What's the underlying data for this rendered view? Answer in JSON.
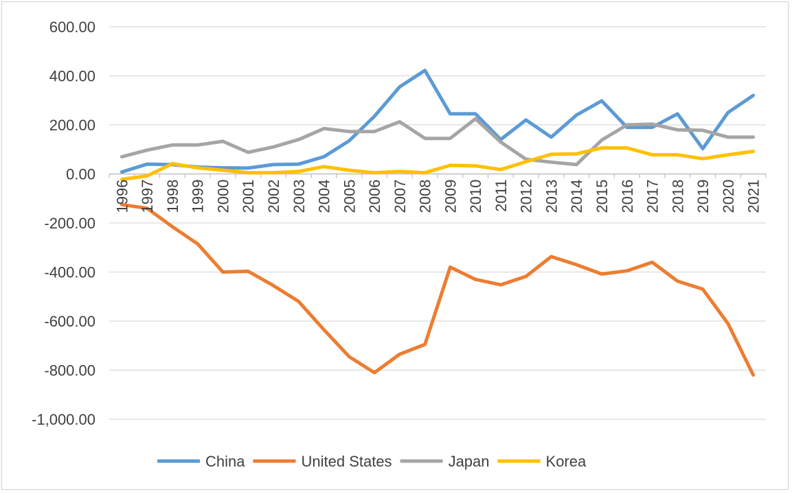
{
  "chart_data": {
    "type": "line",
    "title": "",
    "xlabel": "",
    "ylabel": "",
    "ylim": [
      -1000,
      600
    ],
    "y_ticks": [
      600,
      400,
      200,
      0,
      -200,
      -400,
      -600,
      -800,
      -1000
    ],
    "y_tick_labels": [
      "600.00",
      "400.00",
      "200.00",
      "0.00",
      "-200.00",
      "-400.00",
      "-600.00",
      "-800.00",
      "-1,000.00"
    ],
    "grid": true,
    "legend_position": "bottom",
    "categories": [
      "1996",
      "1997",
      "1998",
      "1999",
      "2000",
      "2001",
      "2002",
      "2003",
      "2004",
      "2005",
      "2006",
      "2007",
      "2008",
      "2009",
      "2010",
      "2011",
      "2012",
      "2013",
      "2014",
      "2015",
      "2016",
      "2017",
      "2018",
      "2019",
      "2020",
      "2021"
    ],
    "series": [
      {
        "name": "China",
        "color": "#5B9BD5",
        "values": [
          8,
          40,
          38,
          28,
          25,
          24,
          38,
          40,
          70,
          135,
          235,
          355,
          422,
          245,
          245,
          140,
          220,
          150,
          240,
          298,
          190,
          190,
          245,
          103,
          250,
          320
        ]
      },
      {
        "name": "United States",
        "color": "#ED7D31",
        "values": [
          -125,
          -140,
          -215,
          -285,
          -400,
          -397,
          -455,
          -520,
          -635,
          -745,
          -810,
          -735,
          -695,
          -380,
          -430,
          -452,
          -418,
          -337,
          -370,
          -408,
          -395,
          -360,
          -437,
          -470,
          -610,
          -820
        ]
      },
      {
        "name": "Japan",
        "color": "#A5A5A5",
        "values": [
          70,
          97,
          118,
          118,
          133,
          88,
          110,
          140,
          185,
          173,
          173,
          213,
          145,
          145,
          225,
          130,
          60,
          48,
          38,
          138,
          200,
          203,
          180,
          178,
          150,
          150
        ]
      },
      {
        "name": "Korea",
        "color": "#FFC000",
        "values": [
          -22,
          -8,
          42,
          25,
          15,
          5,
          5,
          10,
          30,
          15,
          5,
          10,
          5,
          35,
          33,
          18,
          50,
          80,
          82,
          106,
          106,
          78,
          78,
          62,
          78,
          92
        ]
      }
    ]
  }
}
